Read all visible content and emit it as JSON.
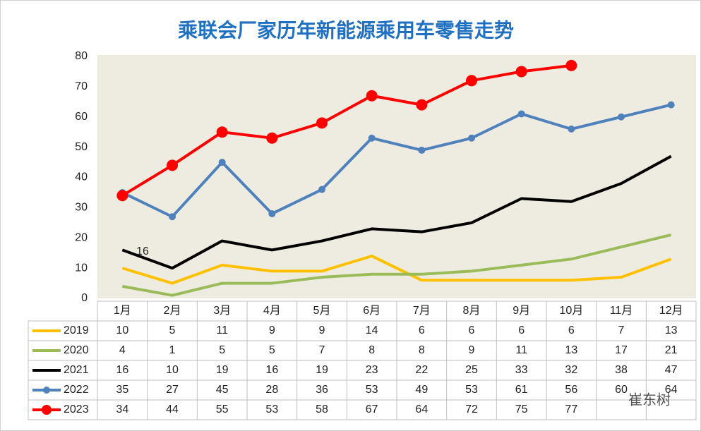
{
  "chart_data": {
    "type": "line",
    "title": "乘联会厂家历年新能源乘用车零售走势",
    "categories": [
      "1月",
      "2月",
      "3月",
      "4月",
      "5月",
      "6月",
      "7月",
      "8月",
      "9月",
      "10月",
      "11月",
      "12月"
    ],
    "series": [
      {
        "name": "2019",
        "color": "#ffc000",
        "marker": false,
        "values": [
          10,
          5,
          11,
          9,
          9,
          14,
          6,
          6,
          6,
          6,
          7,
          13
        ]
      },
      {
        "name": "2020",
        "color": "#9bbb59",
        "marker": false,
        "values": [
          4,
          1,
          5,
          5,
          7,
          8,
          8,
          9,
          11,
          13,
          17,
          21
        ]
      },
      {
        "name": "2021",
        "color": "#000000",
        "marker": false,
        "values": [
          16,
          10,
          19,
          16,
          19,
          23,
          22,
          25,
          33,
          32,
          38,
          47
        ]
      },
      {
        "name": "2022",
        "color": "#4f81bd",
        "marker": true,
        "values": [
          35,
          27,
          45,
          28,
          36,
          53,
          49,
          53,
          61,
          56,
          60,
          64
        ]
      },
      {
        "name": "2023",
        "color": "#ff0000",
        "marker": true,
        "values": [
          34,
          44,
          55,
          53,
          58,
          67,
          64,
          72,
          75,
          77,
          null,
          null
        ]
      }
    ],
    "ylim": [
      0,
      80
    ],
    "yticks": [
      0,
      10,
      20,
      30,
      40,
      50,
      60,
      70,
      80
    ],
    "annotation": "16",
    "watermark": "崔东树"
  }
}
